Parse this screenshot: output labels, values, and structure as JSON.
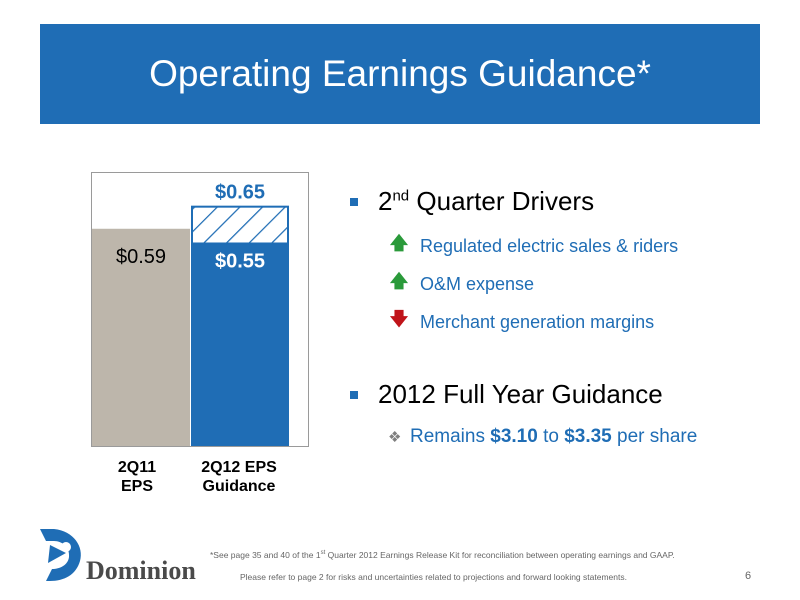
{
  "title": "Operating Earnings Guidance*",
  "chart_data": {
    "type": "bar",
    "categories": [
      "2Q11 EPS",
      "2Q12 EPS Guidance"
    ],
    "tick_lines": [
      [
        "2Q11",
        "EPS"
      ],
      [
        "2Q12 EPS",
        "Guidance"
      ]
    ],
    "bars": [
      {
        "category": "2Q11 EPS",
        "value": 0.59,
        "label": "$0.59",
        "color": "#bdb6ab"
      },
      {
        "category": "2Q12 EPS Guidance",
        "low": 0.55,
        "high": 0.65,
        "low_label": "$0.55",
        "high_label": "$0.65",
        "color": "#1f6db5"
      }
    ],
    "ylim": [
      0,
      0.7
    ],
    "grid": false,
    "legend": "none"
  },
  "drivers": {
    "heading_sup": "nd",
    "heading_pre": "2",
    "heading_post": " Quarter Drivers",
    "items": [
      {
        "text": "Regulated electric sales & riders",
        "direction": "up",
        "icon": "arrow-up-icon"
      },
      {
        "text": "O&M expense",
        "direction": "up",
        "icon": "arrow-up-icon"
      },
      {
        "text": "Merchant generation margins",
        "direction": "down",
        "icon": "arrow-down-icon"
      }
    ]
  },
  "guidance": {
    "heading": "2012 Full Year Guidance",
    "pre": "Remains ",
    "low": "$3.10",
    "mid": " to ",
    "high": "$3.35",
    "post": " per share"
  },
  "footnote": {
    "pre": "*See page 35 and 40 of the 1",
    "sup": "st",
    "post": " Quarter 2012 Earnings Release Kit for reconciliation between operating earnings and GAAP."
  },
  "disclaimer": "Please refer to page 2 for risks and uncertainties related to projections and forward looking statements.",
  "page_number": "6",
  "logo_text": "Dominion",
  "colors": {
    "accent": "#1f6db5",
    "bar_gray": "#bdb6ab",
    "up": "#2a9a3a",
    "down": "#c0141a"
  }
}
